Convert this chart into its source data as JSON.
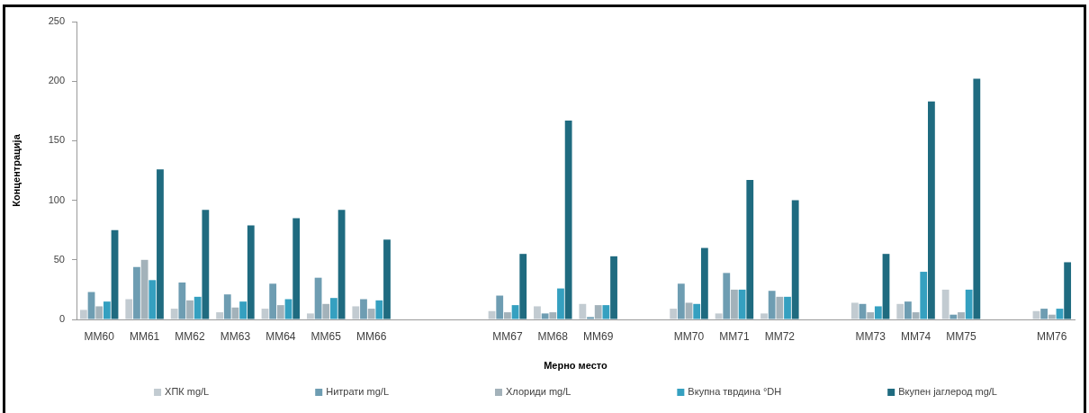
{
  "chart_data": {
    "type": "bar",
    "xlabel": "Мерно место",
    "ylabel": "Концентрација",
    "categories": [
      "MM60",
      "MM61",
      "MM62",
      "MM63",
      "MM64",
      "MM65",
      "MM66",
      null,
      null,
      "MM67",
      "MM68",
      "MM69",
      null,
      "MM70",
      "MM71",
      "MM72",
      null,
      "MM73",
      "MM74",
      "MM75",
      null,
      "MM76"
    ],
    "series": [
      {
        "name": "ХПК mg/L",
        "color": "#c2cbd1",
        "values": [
          8,
          17,
          9,
          6,
          9,
          5,
          11,
          null,
          null,
          7,
          11,
          13,
          null,
          9,
          5,
          5,
          null,
          14,
          13,
          25,
          null,
          7
        ]
      },
      {
        "name": "Нитрати mg/L",
        "color": "#6e9db2",
        "values": [
          23,
          44,
          31,
          21,
          30,
          35,
          17,
          null,
          null,
          20,
          5,
          2,
          null,
          30,
          39,
          24,
          null,
          13,
          15,
          4,
          null,
          9
        ]
      },
      {
        "name": "Хлориди mg/L",
        "color": "#a3b2ba",
        "values": [
          11,
          50,
          16,
          10,
          12,
          13,
          9,
          null,
          null,
          6,
          6,
          12,
          null,
          14,
          25,
          19,
          null,
          6,
          6,
          6,
          null,
          4
        ]
      },
      {
        "name": "Вкупна тврдина °DH",
        "color": "#35a0c0",
        "values": [
          15,
          33,
          19,
          15,
          17,
          18,
          16,
          null,
          null,
          12,
          26,
          12,
          null,
          13,
          25,
          19,
          null,
          11,
          40,
          25,
          null,
          9
        ]
      },
      {
        "name": "Вкупен јаглерод mg/L",
        "color": "#1f6b80",
        "values": [
          75,
          126,
          92,
          79,
          85,
          92,
          67,
          null,
          null,
          55,
          167,
          53,
          null,
          60,
          117,
          100,
          null,
          55,
          183,
          202,
          null,
          48
        ]
      }
    ],
    "ylim": [
      0,
      250
    ],
    "yticks": [
      0,
      50,
      100,
      150,
      200,
      250
    ],
    "legend": "bottom"
  }
}
